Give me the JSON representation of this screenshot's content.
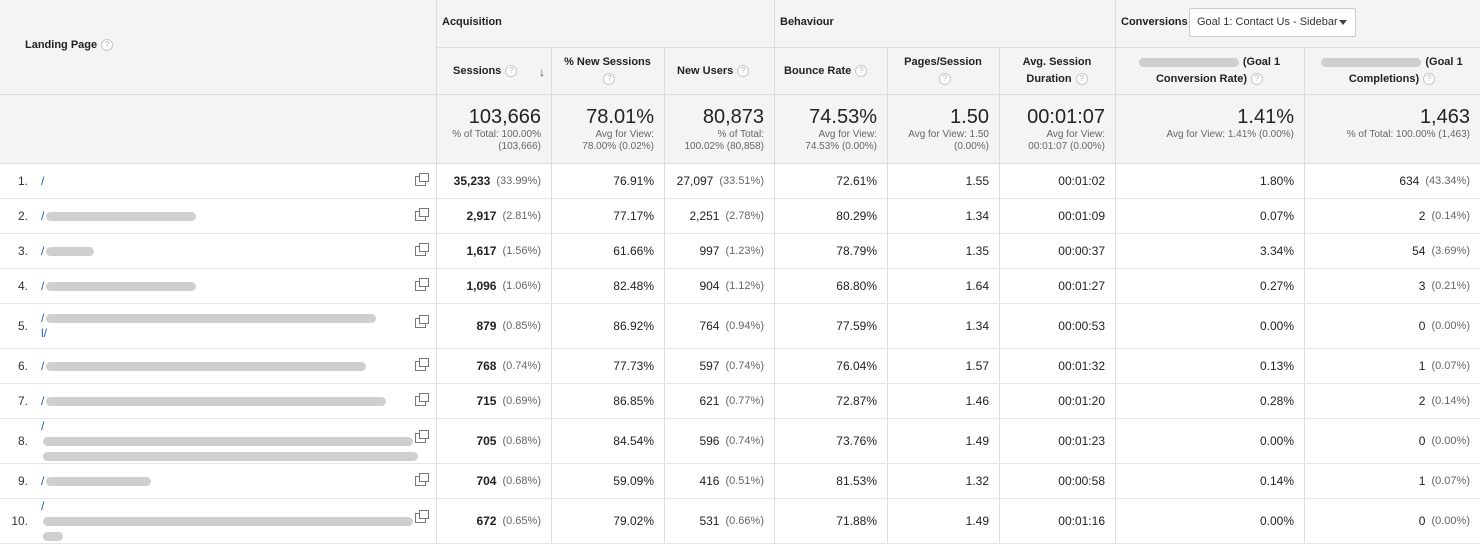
{
  "header": {
    "landing_page": "Landing Page",
    "groups": {
      "acquisition": "Acquisition",
      "behaviour": "Behaviour",
      "conversions": "Conversions"
    },
    "goal_dropdown": "Goal 1: Contact Us - Sidebar",
    "columns": {
      "sessions": "Sessions",
      "new_sessions": "% New Sessions",
      "new_users": "New Users",
      "bounce_rate": "Bounce Rate",
      "pages_session": "Pages/Session",
      "avg_session_1": "Avg. Session",
      "avg_session_2": "Duration",
      "conv_rate_1": "(Goal 1",
      "conv_rate_2": "Conversion Rate)",
      "completions_1": "(Goal 1",
      "completions_2": "Completions)"
    },
    "help_glyph": "?",
    "sort_glyph": "↓"
  },
  "totals": {
    "sessions": {
      "value": "103,666",
      "sub1": "% of Total: 100.00%",
      "sub2": "(103,666)"
    },
    "new_sessions": {
      "value": "78.01%",
      "sub1": "Avg for View:",
      "sub2": "78.00% (0.02%)"
    },
    "new_users": {
      "value": "80,873",
      "sub1": "% of Total:",
      "sub2": "100.02% (80,858)"
    },
    "bounce_rate": {
      "value": "74.53%",
      "sub1": "Avg for View:",
      "sub2": "74.53% (0.00%)"
    },
    "pages_session": {
      "value": "1.50",
      "sub1": "Avg for View: 1.50",
      "sub2": "(0.00%)"
    },
    "avg_duration": {
      "value": "00:01:07",
      "sub1": "Avg for View:",
      "sub2": "00:01:07 (0.00%)"
    },
    "conv_rate": {
      "value": "1.41%",
      "sub1": "Avg for View: 1.41% (0.00%)",
      "sub2": ""
    },
    "completions": {
      "value": "1,463",
      "sub1": "% of Total: 100.00% (1,463)",
      "sub2": ""
    }
  },
  "rows": [
    {
      "num": "1.",
      "page": "/",
      "sessions": "35,233",
      "sessions_pct": "(33.99%)",
      "new_sessions": "76.91%",
      "new_users": "27,097",
      "new_users_pct": "(33.51%)",
      "bounce": "72.61%",
      "pages": "1.55",
      "duration": "00:01:02",
      "conv": "1.80%",
      "comp": "634",
      "comp_pct": "(43.34%)"
    },
    {
      "num": "2.",
      "page": "/",
      "sessions": "2,917",
      "sessions_pct": "(2.81%)",
      "new_sessions": "77.17%",
      "new_users": "2,251",
      "new_users_pct": "(2.78%)",
      "bounce": "80.29%",
      "pages": "1.34",
      "duration": "00:01:09",
      "conv": "0.07%",
      "comp": "2",
      "comp_pct": "(0.14%)"
    },
    {
      "num": "3.",
      "page": "/",
      "sessions": "1,617",
      "sessions_pct": "(1.56%)",
      "new_sessions": "61.66%",
      "new_users": "997",
      "new_users_pct": "(1.23%)",
      "bounce": "78.79%",
      "pages": "1.35",
      "duration": "00:00:37",
      "conv": "3.34%",
      "comp": "54",
      "comp_pct": "(3.69%)"
    },
    {
      "num": "4.",
      "page": "/",
      "sessions": "1,096",
      "sessions_pct": "(1.06%)",
      "new_sessions": "82.48%",
      "new_users": "904",
      "new_users_pct": "(1.12%)",
      "bounce": "68.80%",
      "pages": "1.64",
      "duration": "00:01:27",
      "conv": "0.27%",
      "comp": "3",
      "comp_pct": "(0.21%)"
    },
    {
      "num": "5.",
      "page": "/",
      "page2": "l/",
      "sessions": "879",
      "sessions_pct": "(0.85%)",
      "new_sessions": "86.92%",
      "new_users": "764",
      "new_users_pct": "(0.94%)",
      "bounce": "77.59%",
      "pages": "1.34",
      "duration": "00:00:53",
      "conv": "0.00%",
      "comp": "0",
      "comp_pct": "(0.00%)"
    },
    {
      "num": "6.",
      "page": "/",
      "sessions": "768",
      "sessions_pct": "(0.74%)",
      "new_sessions": "77.73%",
      "new_users": "597",
      "new_users_pct": "(0.74%)",
      "bounce": "76.04%",
      "pages": "1.57",
      "duration": "00:01:32",
      "conv": "0.13%",
      "comp": "1",
      "comp_pct": "(0.07%)"
    },
    {
      "num": "7.",
      "page": "/",
      "sessions": "715",
      "sessions_pct": "(0.69%)",
      "new_sessions": "86.85%",
      "new_users": "621",
      "new_users_pct": "(0.77%)",
      "bounce": "72.87%",
      "pages": "1.46",
      "duration": "00:01:20",
      "conv": "0.28%",
      "comp": "2",
      "comp_pct": "(0.14%)"
    },
    {
      "num": "8.",
      "page": "/",
      "page2": "",
      "sessions": "705",
      "sessions_pct": "(0.68%)",
      "new_sessions": "84.54%",
      "new_users": "596",
      "new_users_pct": "(0.74%)",
      "bounce": "73.76%",
      "pages": "1.49",
      "duration": "00:01:23",
      "conv": "0.00%",
      "comp": "0",
      "comp_pct": "(0.00%)"
    },
    {
      "num": "9.",
      "page": "/",
      "sessions": "704",
      "sessions_pct": "(0.68%)",
      "new_sessions": "59.09%",
      "new_users": "416",
      "new_users_pct": "(0.51%)",
      "bounce": "81.53%",
      "pages": "1.32",
      "duration": "00:00:58",
      "conv": "0.14%",
      "comp": "1",
      "comp_pct": "(0.07%)"
    },
    {
      "num": "10.",
      "page": "/",
      "page2": "",
      "sessions": "672",
      "sessions_pct": "(0.65%)",
      "new_sessions": "79.02%",
      "new_users": "531",
      "new_users_pct": "(0.66%)",
      "bounce": "71.88%",
      "pages": "1.49",
      "duration": "00:01:16",
      "conv": "0.00%",
      "comp": "0",
      "comp_pct": "(0.00%)"
    }
  ]
}
